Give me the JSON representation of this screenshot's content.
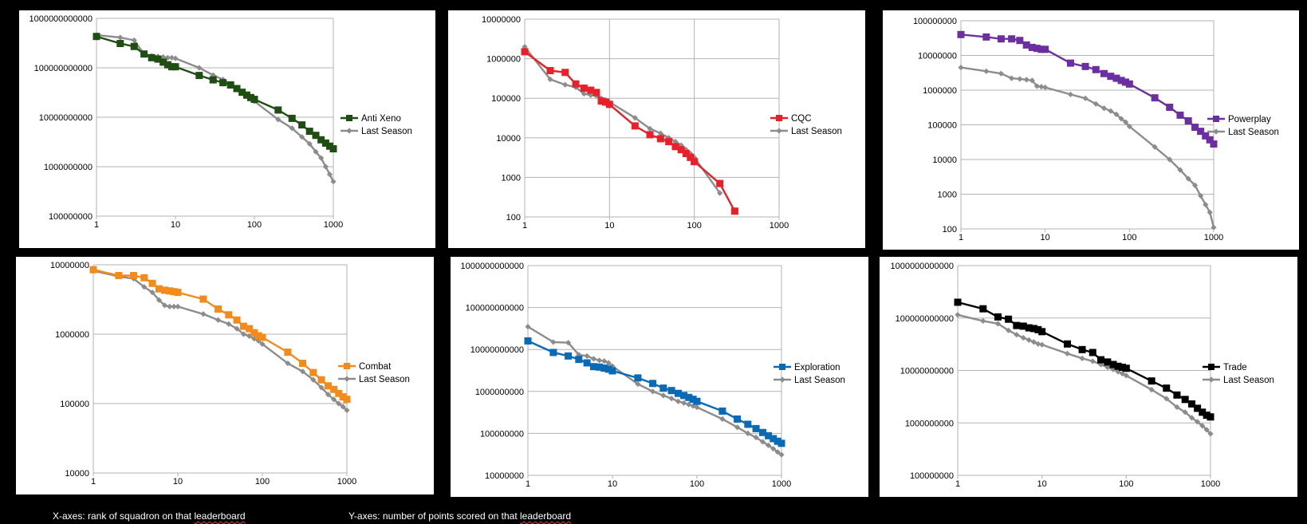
{
  "footer": {
    "x_note_prefix": "X-axes: rank of squadron on that ",
    "x_note_word": "leaderboard",
    "y_note_prefix": "Y-axes: number of points scored on that ",
    "y_note_word": "leaderboard"
  },
  "chart_data": [
    {
      "type": "line",
      "x_scale": "log",
      "y_scale": "log",
      "xlim": [
        1,
        1000
      ],
      "ylim": [
        100000000,
        1000000000000
      ],
      "x_ticks": [
        "1",
        "10",
        "100",
        "1000"
      ],
      "y_ticks": [
        "100000000",
        "1000000000",
        "10000000000",
        "100000000000",
        "1000000000000"
      ],
      "grid": "horizontal",
      "legend": "right",
      "series": [
        {
          "name": "Anti Xeno",
          "color": "#1f4e12",
          "marker": "square",
          "x": [
            1,
            2,
            3,
            4,
            5,
            6,
            7,
            8,
            9,
            10,
            20,
            30,
            40,
            50,
            60,
            70,
            80,
            90,
            100,
            200,
            300,
            400,
            500,
            600,
            700,
            800,
            900,
            1000
          ],
          "y": [
            430000000000,
            310000000000,
            270000000000,
            190000000000,
            160000000000,
            150000000000,
            130000000000,
            115000000000,
            105000000000,
            105000000000,
            70000000000,
            57000000000,
            50000000000,
            45000000000,
            38000000000,
            32000000000,
            28000000000,
            25000000000,
            23000000000,
            14000000000,
            9500000000,
            7000000000,
            5200000000,
            4300000000,
            3500000000,
            3000000000,
            2600000000,
            2300000000
          ]
        },
        {
          "name": "Last Season",
          "color": "#8c8c8c",
          "marker": "diamond",
          "x": [
            1,
            2,
            3,
            4,
            5,
            6,
            7,
            8,
            9,
            10,
            20,
            30,
            40,
            50,
            60,
            70,
            80,
            90,
            100,
            200,
            300,
            400,
            500,
            600,
            700,
            800,
            900,
            1000
          ],
          "y": [
            460000000000,
            410000000000,
            360000000000,
            190000000000,
            175000000000,
            170000000000,
            165000000000,
            160000000000,
            160000000000,
            155000000000,
            100000000000,
            71000000000,
            58000000000,
            47000000000,
            39000000000,
            32000000000,
            27000000000,
            24000000000,
            21000000000,
            9000000000,
            6000000000,
            4000000000,
            2900000000,
            2000000000,
            1500000000,
            1000000000,
            700000000,
            500000000
          ]
        }
      ]
    },
    {
      "type": "line",
      "x_scale": "log",
      "y_scale": "log",
      "xlim": [
        1,
        1000
      ],
      "ylim": [
        100,
        10000000
      ],
      "x_ticks": [
        "1",
        "10",
        "100",
        "1000"
      ],
      "y_ticks": [
        "100",
        "1000",
        "10000",
        "100000",
        "1000000",
        "10000000"
      ],
      "grid": "both",
      "legend": "right",
      "series": [
        {
          "name": "CQC",
          "color": "#e8202a",
          "marker": "square",
          "x": [
            1,
            2,
            3,
            4,
            5,
            6,
            7,
            8,
            9,
            10,
            20,
            30,
            40,
            50,
            60,
            70,
            80,
            90,
            100,
            200,
            300
          ],
          "y": [
            1500000,
            500000,
            450000,
            230000,
            180000,
            160000,
            140000,
            85000,
            80000,
            70000,
            20000,
            12000,
            9500,
            8000,
            6000,
            5000,
            4000,
            3200,
            2500,
            700,
            140
          ]
        },
        {
          "name": "Last Season",
          "color": "#8c8c8c",
          "marker": "diamond",
          "x": [
            1,
            2,
            3,
            4,
            5,
            6,
            7,
            8,
            9,
            10,
            20,
            30,
            40,
            50,
            60,
            70,
            80,
            90,
            100,
            200
          ],
          "y": [
            2000000,
            300000,
            220000,
            190000,
            130000,
            120000,
            115000,
            100000,
            90000,
            80000,
            32000,
            17000,
            13000,
            10000,
            8000,
            6500,
            5000,
            4000,
            3200,
            400
          ]
        }
      ]
    },
    {
      "type": "line",
      "x_scale": "log",
      "y_scale": "log",
      "xlim": [
        1,
        1000
      ],
      "ylim": [
        100,
        100000000
      ],
      "x_ticks": [
        "1",
        "10",
        "100",
        "1000"
      ],
      "y_ticks": [
        "100",
        "1000",
        "10000",
        "100000",
        "1000000",
        "10000000",
        "100000000"
      ],
      "grid": "horizontal",
      "legend": "right",
      "series": [
        {
          "name": "Powerplay",
          "color": "#6b2fa0",
          "marker": "square",
          "x": [
            1,
            2,
            3,
            4,
            5,
            6,
            7,
            8,
            9,
            10,
            20,
            30,
            40,
            50,
            60,
            70,
            80,
            90,
            100,
            200,
            300,
            400,
            500,
            600,
            700,
            800,
            900,
            1000
          ],
          "y": [
            40000000,
            34000000,
            30000000,
            30000000,
            27000000,
            20000000,
            17000000,
            16000000,
            15000000,
            15000000,
            6000000,
            4800000,
            3900000,
            3000000,
            2500000,
            2200000,
            1900000,
            1700000,
            1500000,
            600000,
            320000,
            190000,
            130000,
            85000,
            65000,
            48000,
            37000,
            28000
          ]
        },
        {
          "name": "Last Season",
          "color": "#8c8c8c",
          "marker": "diamond",
          "x": [
            1,
            2,
            3,
            4,
            5,
            6,
            7,
            8,
            9,
            10,
            20,
            30,
            40,
            50,
            60,
            70,
            80,
            90,
            100,
            200,
            300,
            400,
            500,
            600,
            700,
            800,
            900,
            1000
          ],
          "y": [
            4500000,
            3500000,
            3000000,
            2200000,
            2100000,
            2000000,
            1900000,
            1300000,
            1250000,
            1200000,
            750000,
            580000,
            400000,
            300000,
            250000,
            200000,
            150000,
            120000,
            90000,
            23000,
            10000,
            5000,
            2800,
            1800,
            900,
            500,
            300,
            110
          ]
        }
      ]
    },
    {
      "type": "line",
      "x_scale": "log",
      "y_scale": "log",
      "xlim": [
        1,
        1000
      ],
      "ylim": [
        10000,
        10000000
      ],
      "x_ticks": [
        "1",
        "10",
        "100",
        "1000"
      ],
      "y_ticks": [
        "10000",
        "100000",
        "1000000",
        "10000000"
      ],
      "grid": "horizontal",
      "legend": "right",
      "series": [
        {
          "name": "Combat",
          "color": "#f28a1c",
          "marker": "square",
          "x": [
            1,
            2,
            3,
            4,
            5,
            6,
            7,
            8,
            9,
            10,
            20,
            30,
            40,
            50,
            60,
            70,
            80,
            90,
            100,
            200,
            300,
            400,
            500,
            600,
            700,
            800,
            900,
            1000
          ],
          "y": [
            8500000,
            7000000,
            7000000,
            6500000,
            5400000,
            4500000,
            4300000,
            4200000,
            4100000,
            4000000,
            3200000,
            2300000,
            1900000,
            1600000,
            1300000,
            1200000,
            1050000,
            950000,
            900000,
            550000,
            380000,
            280000,
            220000,
            180000,
            160000,
            140000,
            125000,
            115000
          ]
        },
        {
          "name": "Last Season",
          "color": "#8c8c8c",
          "marker": "diamond",
          "x": [
            1,
            2,
            3,
            4,
            5,
            6,
            7,
            8,
            9,
            10,
            20,
            30,
            40,
            50,
            60,
            70,
            80,
            90,
            100,
            200,
            300,
            400,
            500,
            600,
            700,
            800,
            900,
            1000
          ],
          "y": [
            8200000,
            6800000,
            6300000,
            4800000,
            4000000,
            3100000,
            2600000,
            2500000,
            2500000,
            2500000,
            1950000,
            1600000,
            1400000,
            1200000,
            1000000,
            940000,
            860000,
            800000,
            720000,
            380000,
            290000,
            220000,
            170000,
            135000,
            115000,
            100000,
            90000,
            80000
          ]
        }
      ]
    },
    {
      "type": "line",
      "x_scale": "log",
      "y_scale": "log",
      "xlim": [
        1,
        1000
      ],
      "ylim": [
        10000000,
        1000000000000
      ],
      "x_ticks": [
        "1",
        "10",
        "100",
        "1000"
      ],
      "y_ticks": [
        "10000000",
        "100000000",
        "1000000000",
        "10000000000",
        "100000000000",
        "1000000000000"
      ],
      "grid": "horizontal",
      "legend": "right",
      "series": [
        {
          "name": "Exploration",
          "color": "#0a6ab5",
          "marker": "square",
          "x": [
            1,
            2,
            3,
            4,
            5,
            6,
            7,
            8,
            9,
            10,
            20,
            30,
            40,
            50,
            60,
            70,
            80,
            90,
            100,
            200,
            300,
            400,
            500,
            600,
            700,
            800,
            900,
            1000
          ],
          "y": [
            16000000000,
            8500000000,
            7000000000,
            5800000000,
            4800000000,
            3900000000,
            3800000000,
            3600000000,
            3400000000,
            3100000000,
            2100000000,
            1550000000,
            1200000000,
            1050000000,
            900000000,
            800000000,
            720000000,
            650000000,
            580000000,
            340000000,
            220000000,
            165000000,
            130000000,
            105000000,
            88000000,
            75000000,
            65000000,
            58000000
          ]
        },
        {
          "name": "Last Season",
          "color": "#8c8c8c",
          "marker": "diamond",
          "x": [
            1,
            2,
            3,
            4,
            5,
            6,
            7,
            8,
            9,
            10,
            20,
            30,
            40,
            50,
            60,
            70,
            80,
            90,
            100,
            200,
            300,
            400,
            500,
            600,
            700,
            800,
            900,
            1000
          ],
          "y": [
            35000000000,
            15000000000,
            14500000000,
            7500000000,
            7000000000,
            6000000000,
            5500000000,
            5300000000,
            4800000000,
            4000000000,
            1500000000,
            1000000000,
            800000000,
            680000000,
            580000000,
            530000000,
            490000000,
            450000000,
            420000000,
            220000000,
            140000000,
            100000000,
            80000000,
            63000000,
            52000000,
            43000000,
            36000000,
            31000000
          ]
        }
      ]
    },
    {
      "type": "line",
      "x_scale": "log",
      "y_scale": "log",
      "xlim": [
        1,
        1000
      ],
      "ylim": [
        100000000,
        1000000000000
      ],
      "x_ticks": [
        "1",
        "10",
        "100",
        "1000"
      ],
      "y_ticks": [
        "100000000",
        "1000000000",
        "10000000000",
        "100000000000",
        "1000000000000"
      ],
      "grid": "horizontal",
      "legend": "right",
      "series": [
        {
          "name": "Trade",
          "color": "#000000",
          "marker": "square",
          "x": [
            1,
            2,
            3,
            4,
            5,
            6,
            7,
            8,
            9,
            10,
            20,
            30,
            40,
            50,
            60,
            70,
            80,
            90,
            100,
            200,
            300,
            400,
            500,
            600,
            700,
            800,
            900,
            1000
          ],
          "y": [
            200000000000,
            150000000000,
            105000000000,
            95000000000,
            72000000000,
            70000000000,
            65000000000,
            63000000000,
            60000000000,
            55000000000,
            32000000000,
            25000000000,
            22000000000,
            16000000000,
            14500000000,
            13000000000,
            12000000000,
            11500000000,
            11000000000,
            6300000000,
            4600000000,
            3400000000,
            2800000000,
            2300000000,
            1900000000,
            1600000000,
            1400000000,
            1300000000
          ]
        },
        {
          "name": "Last Season",
          "color": "#8c8c8c",
          "marker": "diamond",
          "x": [
            1,
            2,
            3,
            4,
            5,
            6,
            7,
            8,
            9,
            10,
            20,
            30,
            40,
            50,
            60,
            70,
            80,
            90,
            100,
            200,
            300,
            400,
            500,
            600,
            700,
            800,
            900,
            1000
          ],
          "y": [
            115000000000,
            88000000000,
            78000000000,
            58000000000,
            48000000000,
            42000000000,
            38000000000,
            35000000000,
            32000000000,
            31000000000,
            21000000000,
            17000000000,
            15000000000,
            13000000000,
            11500000000,
            10500000000,
            9500000000,
            8700000000,
            8000000000,
            4300000000,
            2900000000,
            2000000000,
            1600000000,
            1250000000,
            1050000000,
            880000000,
            740000000,
            620000000
          ]
        }
      ]
    }
  ]
}
